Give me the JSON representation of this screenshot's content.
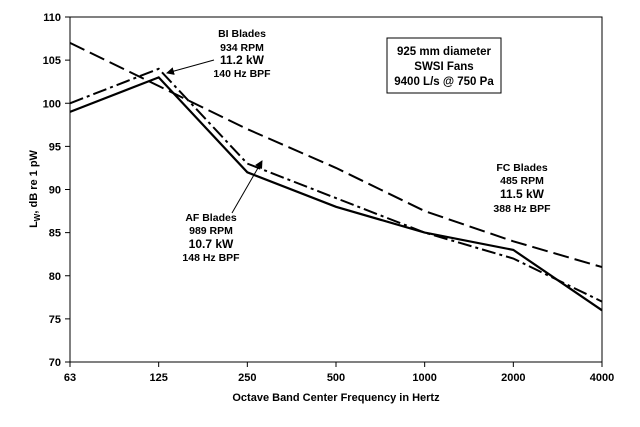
{
  "chart_data": {
    "type": "line",
    "title": "",
    "xlabel": "Octave Band Center Frequency in Hertz",
    "ylabel_main": "L",
    "ylabel_sub": "W",
    "ylabel_rest": ", dB re 1 pW",
    "categories": [
      "63",
      "125",
      "250",
      "500",
      "1000",
      "2000",
      "4000"
    ],
    "yticks": [
      "70",
      "75",
      "80",
      "85",
      "90",
      "95",
      "100",
      "105",
      "110"
    ],
    "ylim": [
      70,
      110
    ],
    "grid": false,
    "series": [
      {
        "name": "AF Blades",
        "style": "solid",
        "values": [
          99,
          103,
          92,
          88,
          85,
          83,
          76
        ]
      },
      {
        "name": "BI Blades",
        "style": "dash-dot",
        "values": [
          100,
          104,
          93,
          89,
          85,
          82,
          77
        ]
      },
      {
        "name": "FC Blades",
        "style": "long-dash",
        "values": [
          107,
          102,
          97,
          92.5,
          87.5,
          84,
          81
        ]
      }
    ],
    "info_box": [
      "925 mm diameter",
      "SWSI Fans",
      "9400 L/s @ 750 Pa"
    ],
    "annotations": {
      "bi": [
        "BI Blades",
        "934 RPM",
        "11.2 kW",
        "140 Hz BPF"
      ],
      "af": [
        "AF Blades",
        "989 RPM",
        "10.7 kW",
        "148 Hz BPF"
      ],
      "fc": [
        "FC Blades",
        "485 RPM",
        "11.5 kW",
        "388 Hz BPF"
      ]
    }
  }
}
